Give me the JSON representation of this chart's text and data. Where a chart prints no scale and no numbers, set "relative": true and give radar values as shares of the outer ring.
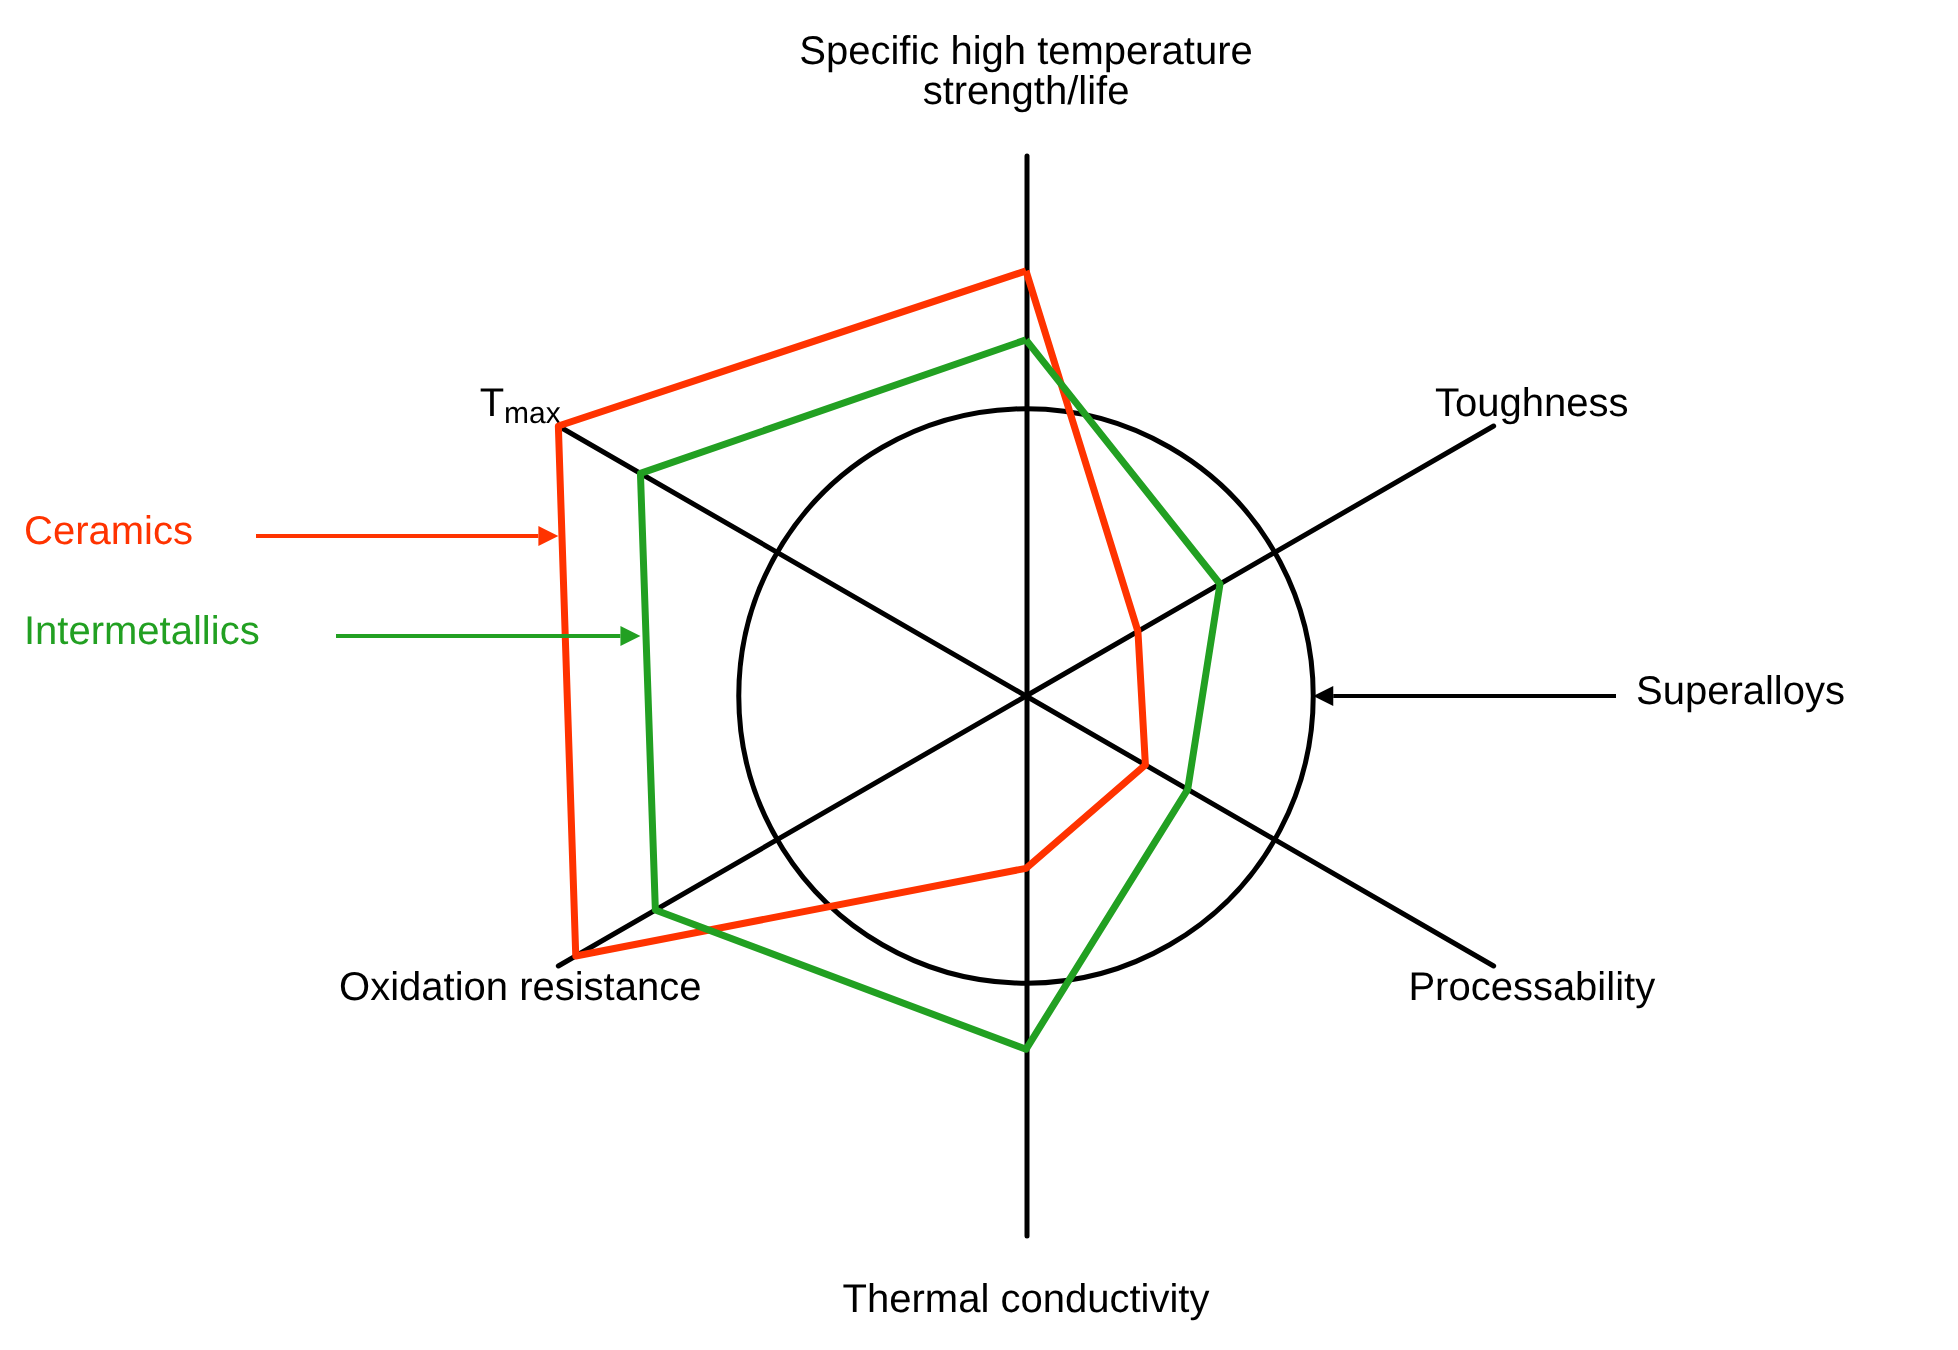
{
  "chart_data": {
    "type": "radar",
    "relative": true,
    "categories": [
      "Specific high temperature strength/life",
      "Toughness",
      "Processability",
      "Thermal conductivity",
      "Oxidation resistance",
      "T$_{max}$"
    ],
    "series": [
      {
        "name": "Ceramics",
        "color": "#ff3300",
        "values": [
          1.48,
          0.45,
          0.48,
          0.6,
          1.81,
          1.88
        ]
      },
      {
        "name": "Intermetallics",
        "color": "#22a022",
        "values": [
          1.24,
          0.78,
          0.65,
          1.23,
          1.49,
          1.55
        ]
      }
    ],
    "annotations": [
      "Superalloys"
    ]
  }
}
